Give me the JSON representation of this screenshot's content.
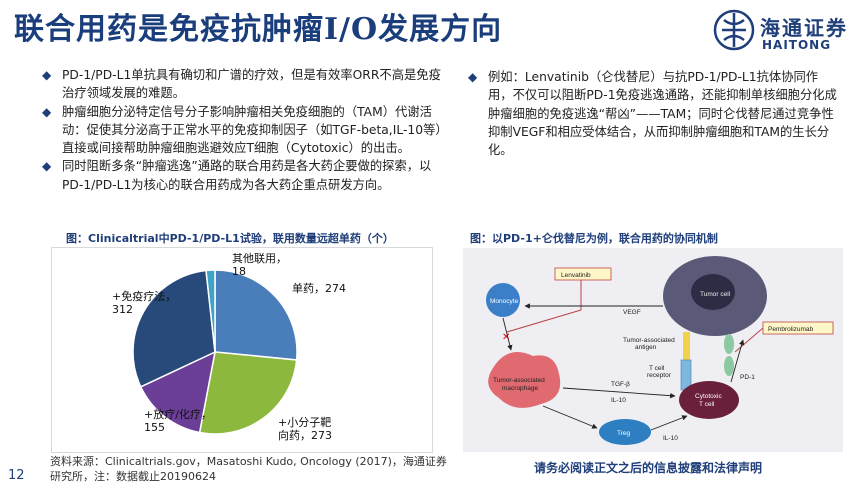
{
  "title": "联合用药是免疫抗肿瘤I/O发展方向",
  "logo": {
    "cn": "海通证券",
    "en": "HAITONG"
  },
  "left_bullets": [
    "PD-1/PD-L1单抗具有确切和广谱的疗效，但是有效率ORR不高是免疫治疗领域发展的难题。",
    "肿瘤细胞分泌特定信号分子影响肿瘤相关免疫细胞的（TAM）代谢活动：促使其分泌高于正常水平的免疫抑制因子（如TGF-beta,IL-10等）直接或间接帮助肿瘤细胞逃避效应T细胞（Cytotoxic）的出击。",
    "同时阻断多条“肿瘤逃逸”通路的联合用药是各大药企要做的探索，以PD-1/PD-L1为核心的联合用药成为各大药企重点研发方向。"
  ],
  "right_bullets": [
    "例如：Lenvatinib（仑伐替尼）与抗PD-1/PD-L1抗体协同作用，不仅可以阻断PD-1免疫逃逸通路，还能抑制单核细胞分化成肿瘤细胞的免疫逃逸“帮凶”——TAM；同时仑伐替尼通过竞争性抑制VEGF和相应受体结合，从而抑制肿瘤细胞和TAM的生长分化。"
  ],
  "chart_caption": "图：Clinicaltrial中PD-1/PD-L1试验，联用数量远超单药（个）",
  "diagram_caption": "图：以PD-1+仑伐替尼为例，联合用药的协同机制",
  "chart_data": {
    "type": "pie",
    "title": "",
    "slices": [
      {
        "label": "单药，274",
        "value": 274,
        "color": "#4a7ebb"
      },
      {
        "label": "+小分子靶向药，273",
        "value": 273,
        "color": "#8cb83e"
      },
      {
        "label": "+放疗/化疗，155",
        "value": 155,
        "color": "#6b3f98"
      },
      {
        "label": "+免疫疗法，312",
        "value": 312,
        "color": "#274a7a"
      },
      {
        "label": "其他联用，18",
        "value": 18,
        "color": "#3fa3c4"
      }
    ],
    "display_labels": [
      [
        "单药，274"
      ],
      [
        "+小分子靶",
        "向药，273"
      ],
      [
        "+放疗/化疗，",
        "155"
      ],
      [
        "+免疫疗法，",
        "312"
      ],
      [
        "其他联用，",
        "18"
      ]
    ]
  },
  "diagram": {
    "lenvatinib": "Lenvatinib",
    "pembrolizumab": "Pembrolizumab",
    "monocyte": "Monocyte",
    "tumor_cell": "Tumor cell",
    "vegf": "VEGF",
    "tam": [
      "Tumor-associated",
      "macrophage"
    ],
    "antigen": [
      "Tumor-associated",
      "antigen"
    ],
    "tcr": [
      "T cell",
      "receptor"
    ],
    "pd1": "PD-1",
    "cytotoxic": [
      "Cytotoxic",
      "T cell"
    ],
    "treg": "Treg",
    "tgf": "TGF-β",
    "il10a": "IL-10",
    "il10b": "IL-10"
  },
  "source": "资料来源：Clinicaltrials.gov，Masatoshi Kudo, Oncology (2017)，海通证券研究所，注：数据截止20190624",
  "disclaimer": "请务必阅读正文之后的信息披露和法律声明",
  "page_number": "12"
}
